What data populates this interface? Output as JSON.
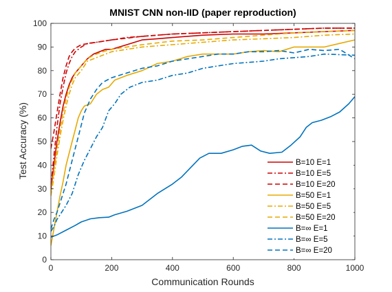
{
  "chart_data": {
    "type": "line",
    "title": "MNIST CNN non-IID (paper reproduction)",
    "xlabel": "Communication Rounds",
    "ylabel": "Test Accuracy (%)",
    "xlim": [
      0,
      1000
    ],
    "ylim": [
      0,
      100
    ],
    "xticks": [
      0,
      200,
      400,
      600,
      800,
      1000
    ],
    "yticks": [
      0,
      10,
      20,
      30,
      40,
      50,
      60,
      70,
      80,
      90,
      100
    ],
    "grid": false,
    "legend_position": "lower-right",
    "series": [
      {
        "name": "B=10 E=1",
        "color": "#cc0000",
        "style": "solid",
        "points": [
          [
            0,
            30
          ],
          [
            10,
            40
          ],
          [
            20,
            50
          ],
          [
            30,
            58
          ],
          [
            40,
            65
          ],
          [
            50,
            70
          ],
          [
            60,
            74
          ],
          [
            70,
            77
          ],
          [
            80,
            79
          ],
          [
            100,
            82
          ],
          [
            120,
            85
          ],
          [
            140,
            87
          ],
          [
            160,
            88
          ],
          [
            180,
            89
          ],
          [
            200,
            89
          ],
          [
            250,
            91
          ],
          [
            300,
            93
          ],
          [
            350,
            93.5
          ],
          [
            400,
            94
          ],
          [
            500,
            95
          ],
          [
            600,
            95.5
          ],
          [
            700,
            95.5
          ],
          [
            800,
            96
          ],
          [
            900,
            96.5
          ],
          [
            1000,
            97
          ]
        ]
      },
      {
        "name": "B=10 E=5",
        "color": "#cc0000",
        "style": "dashdot",
        "points": [
          [
            0,
            31
          ],
          [
            10,
            44
          ],
          [
            20,
            56
          ],
          [
            30,
            66
          ],
          [
            40,
            73
          ],
          [
            50,
            79
          ],
          [
            60,
            83
          ],
          [
            70,
            86
          ],
          [
            80,
            88
          ],
          [
            100,
            90
          ],
          [
            120,
            91.5
          ],
          [
            150,
            92
          ],
          [
            200,
            93
          ],
          [
            250,
            94
          ],
          [
            300,
            94.5
          ],
          [
            400,
            95.5
          ],
          [
            500,
            96
          ],
          [
            600,
            96.5
          ],
          [
            700,
            97
          ],
          [
            800,
            97.5
          ],
          [
            900,
            98
          ],
          [
            1000,
            98
          ]
        ]
      },
      {
        "name": "B=10 E=20",
        "color": "#cc0000",
        "style": "dashed",
        "points": [
          [
            0,
            47
          ],
          [
            10,
            54
          ],
          [
            20,
            62
          ],
          [
            30,
            70
          ],
          [
            40,
            77
          ],
          [
            50,
            82
          ],
          [
            60,
            86
          ],
          [
            70,
            88
          ],
          [
            80,
            89.5
          ],
          [
            100,
            91
          ],
          [
            150,
            92
          ],
          [
            200,
            93
          ],
          [
            300,
            94.5
          ],
          [
            400,
            95.5
          ],
          [
            500,
            96
          ],
          [
            600,
            96.5
          ],
          [
            700,
            97
          ],
          [
            800,
            97.5
          ],
          [
            900,
            98
          ],
          [
            1000,
            98
          ]
        ]
      },
      {
        "name": "B=50 E=1",
        "color": "#e6a800",
        "style": "solid",
        "points": [
          [
            0,
            6
          ],
          [
            10,
            13
          ],
          [
            20,
            20
          ],
          [
            30,
            27
          ],
          [
            40,
            33
          ],
          [
            50,
            40
          ],
          [
            60,
            45
          ],
          [
            70,
            50
          ],
          [
            80,
            55
          ],
          [
            90,
            60
          ],
          [
            100,
            63
          ],
          [
            110,
            65
          ],
          [
            130,
            66
          ],
          [
            150,
            70
          ],
          [
            170,
            72
          ],
          [
            190,
            73
          ],
          [
            210,
            76
          ],
          [
            250,
            78
          ],
          [
            300,
            80
          ],
          [
            350,
            83
          ],
          [
            400,
            84
          ],
          [
            450,
            86
          ],
          [
            500,
            87
          ],
          [
            550,
            87
          ],
          [
            600,
            87
          ],
          [
            650,
            88
          ],
          [
            700,
            88.5
          ],
          [
            750,
            88
          ],
          [
            800,
            90
          ],
          [
            850,
            90
          ],
          [
            900,
            90
          ],
          [
            950,
            91.5
          ],
          [
            1000,
            93
          ]
        ]
      },
      {
        "name": "B=50 E=5",
        "color": "#e6a800",
        "style": "dashdot",
        "points": [
          [
            0,
            27
          ],
          [
            10,
            35
          ],
          [
            20,
            44
          ],
          [
            30,
            52
          ],
          [
            40,
            59
          ],
          [
            50,
            65
          ],
          [
            60,
            70
          ],
          [
            70,
            74
          ],
          [
            80,
            77
          ],
          [
            100,
            80
          ],
          [
            120,
            84
          ],
          [
            140,
            85
          ],
          [
            160,
            86
          ],
          [
            200,
            88
          ],
          [
            250,
            89
          ],
          [
            300,
            90
          ],
          [
            400,
            91
          ],
          [
            500,
            92
          ],
          [
            600,
            93
          ],
          [
            700,
            93.5
          ],
          [
            800,
            94
          ],
          [
            900,
            95
          ],
          [
            1000,
            95.5
          ]
        ]
      },
      {
        "name": "B=50 E=20",
        "color": "#e6a800",
        "style": "dashed",
        "points": [
          [
            0,
            28
          ],
          [
            10,
            38
          ],
          [
            20,
            47
          ],
          [
            30,
            55
          ],
          [
            40,
            62
          ],
          [
            50,
            68
          ],
          [
            60,
            73
          ],
          [
            70,
            76
          ],
          [
            80,
            79
          ],
          [
            100,
            82
          ],
          [
            120,
            85
          ],
          [
            140,
            86.5
          ],
          [
            170,
            88
          ],
          [
            200,
            89
          ],
          [
            250,
            90
          ],
          [
            300,
            91
          ],
          [
            400,
            92.5
          ],
          [
            500,
            93
          ],
          [
            600,
            94
          ],
          [
            700,
            95
          ],
          [
            800,
            96
          ],
          [
            900,
            96.5
          ],
          [
            1000,
            97
          ]
        ]
      },
      {
        "name": "B=∞ E=1",
        "color": "#0072bd",
        "style": "solid",
        "points": [
          [
            0,
            9.5
          ],
          [
            20,
            10.5
          ],
          [
            50,
            12.5
          ],
          [
            80,
            14.5
          ],
          [
            100,
            16
          ],
          [
            130,
            17.3
          ],
          [
            160,
            17.8
          ],
          [
            190,
            18
          ],
          [
            210,
            19
          ],
          [
            250,
            20.5
          ],
          [
            300,
            23
          ],
          [
            350,
            28
          ],
          [
            400,
            32
          ],
          [
            430,
            35
          ],
          [
            460,
            39
          ],
          [
            490,
            43
          ],
          [
            520,
            45
          ],
          [
            560,
            45
          ],
          [
            600,
            46.5
          ],
          [
            630,
            48
          ],
          [
            660,
            48.5
          ],
          [
            690,
            46
          ],
          [
            720,
            45
          ],
          [
            760,
            45.5
          ],
          [
            790,
            48.5
          ],
          [
            820,
            52
          ],
          [
            840,
            56
          ],
          [
            860,
            58
          ],
          [
            890,
            59
          ],
          [
            920,
            60.5
          ],
          [
            950,
            62.5
          ],
          [
            980,
            66
          ],
          [
            1000,
            69
          ]
        ]
      },
      {
        "name": "B=∞ E=5",
        "color": "#0072bd",
        "style": "dashdot",
        "points": [
          [
            0,
            12
          ],
          [
            10,
            14
          ],
          [
            20,
            17
          ],
          [
            30,
            19
          ],
          [
            50,
            23
          ],
          [
            70,
            28
          ],
          [
            90,
            36
          ],
          [
            110,
            42
          ],
          [
            130,
            47
          ],
          [
            150,
            52
          ],
          [
            170,
            56
          ],
          [
            190,
            63
          ],
          [
            210,
            66
          ],
          [
            230,
            70
          ],
          [
            260,
            73
          ],
          [
            300,
            75
          ],
          [
            350,
            76
          ],
          [
            400,
            78
          ],
          [
            450,
            79
          ],
          [
            500,
            81
          ],
          [
            550,
            82
          ],
          [
            600,
            83
          ],
          [
            650,
            83.5
          ],
          [
            700,
            84
          ],
          [
            750,
            85
          ],
          [
            800,
            85.5
          ],
          [
            850,
            86
          ],
          [
            900,
            87
          ],
          [
            1000,
            86.5
          ]
        ]
      },
      {
        "name": "B=∞ E=20",
        "color": "#0072bd",
        "style": "dashed",
        "points": [
          [
            0,
            13
          ],
          [
            10,
            17
          ],
          [
            20,
            20
          ],
          [
            30,
            24
          ],
          [
            50,
            32
          ],
          [
            70,
            42
          ],
          [
            90,
            52
          ],
          [
            110,
            62
          ],
          [
            130,
            68
          ],
          [
            150,
            72
          ],
          [
            170,
            75
          ],
          [
            200,
            77
          ],
          [
            250,
            79
          ],
          [
            300,
            81
          ],
          [
            350,
            82
          ],
          [
            400,
            84
          ],
          [
            450,
            85
          ],
          [
            500,
            86
          ],
          [
            550,
            87
          ],
          [
            600,
            87
          ],
          [
            650,
            88
          ],
          [
            700,
            88
          ],
          [
            750,
            88.5
          ],
          [
            800,
            87.5
          ],
          [
            850,
            89
          ],
          [
            900,
            88.5
          ],
          [
            950,
            89
          ],
          [
            1000,
            85
          ]
        ]
      }
    ]
  }
}
